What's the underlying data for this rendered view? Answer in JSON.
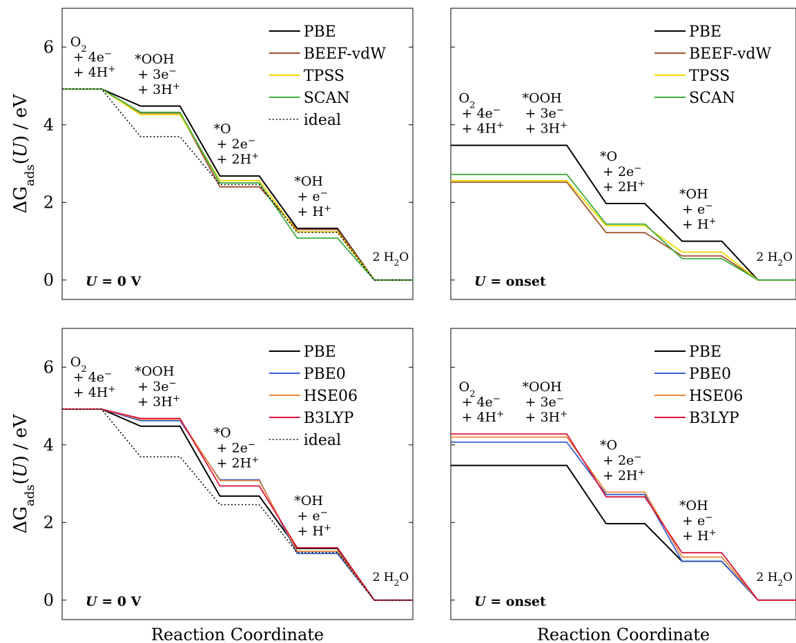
{
  "figure": {
    "ylabel": "ΔG_ads(U) / eV",
    "xlabel": "Reaction Coordinate",
    "yticks": [
      "0",
      "2",
      "4",
      "6"
    ]
  },
  "chart_data": [
    {
      "type": "line",
      "panel": "top-left",
      "annotation": "U = 0 V",
      "ylim": [
        -0.5,
        7.0
      ],
      "xlabel": "",
      "ylabel": "ΔG_ads(U) / eV",
      "legend_position": "top-right",
      "states": [
        "O2 + 4e− + 4H+",
        "*OOH + 3e− + 3H+",
        "*O + 2e− + 2H+",
        "*OH + e− + H+",
        "2 H2O"
      ],
      "series": [
        {
          "name": "PBE",
          "color": "#000000",
          "dash": "solid",
          "values": [
            4.92,
            4.48,
            2.68,
            1.33,
            0.0
          ]
        },
        {
          "name": "BEEF-vdW",
          "color": "#a0522d",
          "dash": "solid",
          "values": [
            4.92,
            4.3,
            2.4,
            1.3,
            0.0
          ]
        },
        {
          "name": "TPSS",
          "color": "#f2d600",
          "dash": "solid",
          "values": [
            4.92,
            4.26,
            2.56,
            1.24,
            0.0
          ]
        },
        {
          "name": "SCAN",
          "color": "#3cae3c",
          "dash": "solid",
          "values": [
            4.92,
            4.32,
            2.5,
            1.08,
            0.0
          ]
        },
        {
          "name": "ideal",
          "color": "#000000",
          "dash": "dotted",
          "values": [
            4.92,
            3.69,
            2.46,
            1.23,
            0.0
          ]
        }
      ]
    },
    {
      "type": "line",
      "panel": "top-right",
      "annotation": "U = onset",
      "ylim": [
        -0.5,
        7.0
      ],
      "xlabel": "",
      "ylabel": "",
      "legend_position": "top-right",
      "states": [
        "O2 + 4e− + 4H+",
        "*OOH + 3e− + 3H+",
        "*O + 2e− + 2H+",
        "*OH + e− + H+",
        "2 H2O"
      ],
      "series": [
        {
          "name": "PBE",
          "color": "#000000",
          "dash": "solid",
          "values": [
            3.47,
            3.47,
            1.97,
            1.0,
            0.0
          ]
        },
        {
          "name": "BEEF-vdW",
          "color": "#a0522d",
          "dash": "solid",
          "values": [
            2.52,
            2.52,
            1.22,
            0.62,
            0.0
          ]
        },
        {
          "name": "TPSS",
          "color": "#f2d600",
          "dash": "solid",
          "values": [
            2.56,
            2.56,
            1.4,
            0.72,
            0.0
          ]
        },
        {
          "name": "SCAN",
          "color": "#3cae3c",
          "dash": "solid",
          "values": [
            2.72,
            2.72,
            1.44,
            0.55,
            0.0
          ]
        }
      ]
    },
    {
      "type": "line",
      "panel": "bottom-left",
      "annotation": "U = 0 V",
      "ylim": [
        -0.5,
        7.0
      ],
      "xlabel": "Reaction Coordinate",
      "ylabel": "ΔG_ads(U) / eV",
      "legend_position": "top-right",
      "states": [
        "O2 + 4e− + 4H+",
        "*OOH + 3e− + 3H+",
        "*O + 2e− + 2H+",
        "*OH + e− + H+",
        "2 H2O"
      ],
      "series": [
        {
          "name": "PBE",
          "color": "#000000",
          "dash": "solid",
          "values": [
            4.92,
            4.48,
            2.68,
            1.33,
            0.0
          ]
        },
        {
          "name": "PBE0",
          "color": "#3a5fcd",
          "dash": "solid",
          "values": [
            4.92,
            4.62,
            3.1,
            1.2,
            0.0
          ]
        },
        {
          "name": "HSE06",
          "color": "#e8873a",
          "dash": "solid",
          "values": [
            4.92,
            4.66,
            3.08,
            1.26,
            0.0
          ]
        },
        {
          "name": "B3LYP",
          "color": "#dc143c",
          "dash": "solid",
          "values": [
            4.92,
            4.68,
            2.94,
            1.35,
            0.0
          ]
        },
        {
          "name": "ideal",
          "color": "#000000",
          "dash": "dotted",
          "values": [
            4.92,
            3.69,
            2.46,
            1.23,
            0.0
          ]
        }
      ]
    },
    {
      "type": "line",
      "panel": "bottom-right",
      "annotation": "U = onset",
      "ylim": [
        -0.5,
        7.0
      ],
      "xlabel": "Reaction Coordinate",
      "ylabel": "",
      "legend_position": "top-right",
      "states": [
        "O2 + 4e− + 4H+",
        "*OOH + 3e− + 3H+",
        "*O + 2e− + 2H+",
        "*OH + e− + H+",
        "2 H2O"
      ],
      "series": [
        {
          "name": "PBE",
          "color": "#000000",
          "dash": "solid",
          "values": [
            3.47,
            3.47,
            1.97,
            1.0,
            0.0
          ]
        },
        {
          "name": "PBE0",
          "color": "#3a5fcd",
          "dash": "solid",
          "values": [
            4.07,
            4.07,
            2.72,
            1.0,
            0.0
          ]
        },
        {
          "name": "HSE06",
          "color": "#e8873a",
          "dash": "solid",
          "values": [
            4.2,
            4.2,
            2.78,
            1.11,
            0.0
          ]
        },
        {
          "name": "B3LYP",
          "color": "#dc143c",
          "dash": "solid",
          "values": [
            4.28,
            4.28,
            2.66,
            1.22,
            0.0
          ]
        }
      ]
    }
  ]
}
